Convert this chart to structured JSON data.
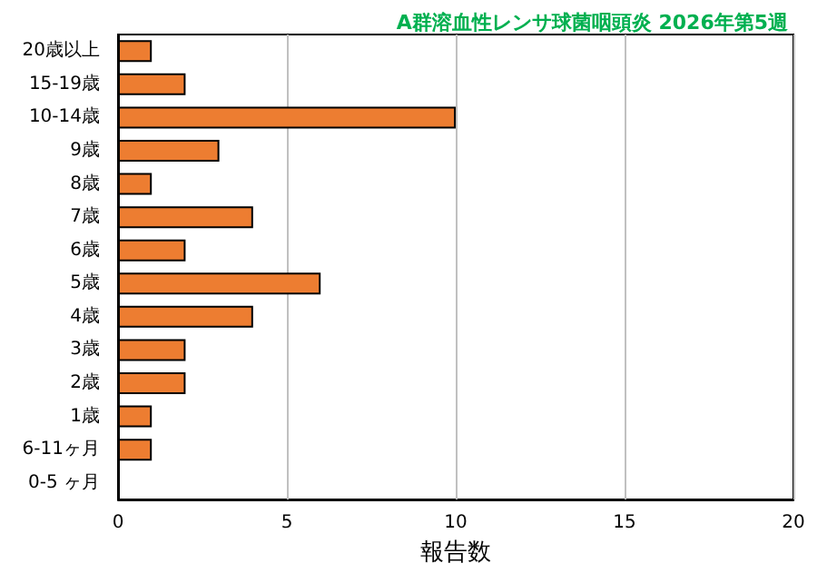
{
  "chart_data": {
    "type": "bar",
    "orientation": "horizontal",
    "title": "A群溶血性レンサ球菌咽頭炎 2026年第5週",
    "xlabel": "報告数",
    "categories": [
      "20歳以上",
      "15-19歳",
      "10-14歳",
      "9歳",
      "8歳",
      "7歳",
      "6歳",
      "5歳",
      "4歳",
      "3歳",
      "2歳",
      "1歳",
      "6-11ヶ月",
      "0-5 ヶ月"
    ],
    "values": [
      1,
      2,
      10,
      3,
      1,
      4,
      2,
      6,
      4,
      2,
      2,
      1,
      1,
      0
    ],
    "color": "#ed7d31",
    "xlim": [
      0,
      20
    ],
    "xticks": [
      0,
      5,
      10,
      15,
      20
    ],
    "grid": "x"
  }
}
